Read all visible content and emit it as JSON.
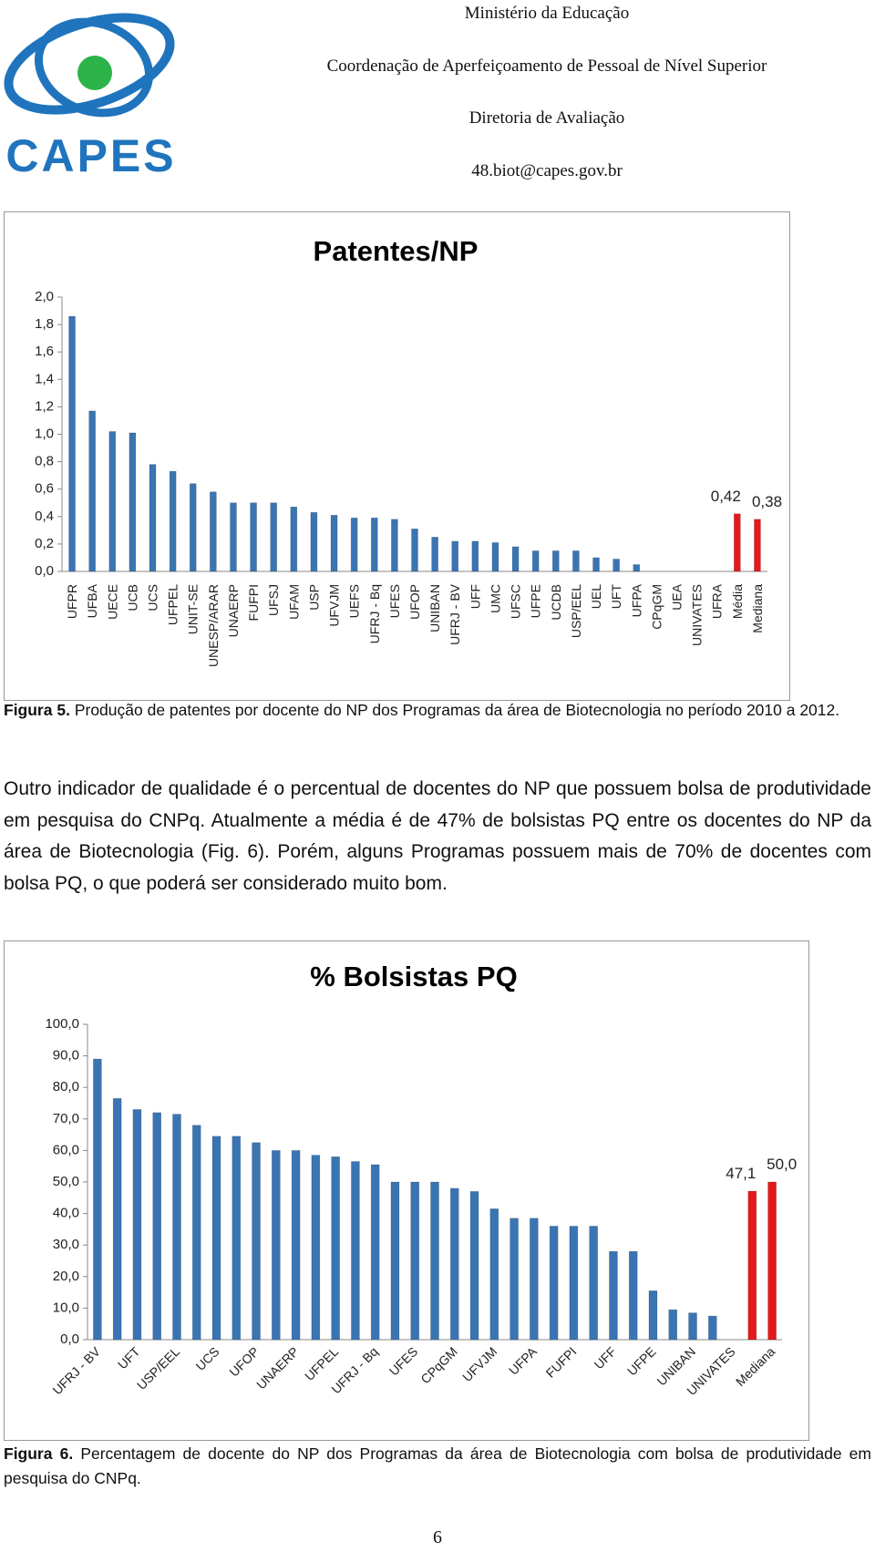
{
  "header": {
    "logo_text": "CAPES",
    "lines": [
      "Ministério da Educação",
      "Coordenação de Aperfeiçoamento de Pessoal de Nível Superior",
      "Diretoria de Avaliação",
      "48.biot@capes.gov.br"
    ]
  },
  "chart_data": [
    {
      "type": "bar",
      "title": "Patentes/NP",
      "categories": [
        "UFPR",
        "UFBA",
        "UECE",
        "UCB",
        "UCS",
        "UFPEL",
        "UNIT-SE",
        "UNESP/ARAR",
        "UNAERP",
        "FUFPI",
        "UFSJ",
        "UFAM",
        "USP",
        "UFVJM",
        "UEFS",
        "UFRJ - Bq",
        "UFES",
        "UFOP",
        "UNIBAN",
        "UFRJ - BV",
        "UFF",
        "UMC",
        "UFSC",
        "UFPE",
        "UCDB",
        "USP/EEL",
        "UEL",
        "UFT",
        "UFPA",
        "CPqGM",
        "UEA",
        "UNIVATES",
        "UFRA",
        "Média",
        "Mediana"
      ],
      "values": [
        1.86,
        1.17,
        1.02,
        1.01,
        0.78,
        0.73,
        0.64,
        0.58,
        0.5,
        0.5,
        0.5,
        0.47,
        0.43,
        0.41,
        0.39,
        0.39,
        0.38,
        0.31,
        0.25,
        0.22,
        0.22,
        0.21,
        0.18,
        0.15,
        0.15,
        0.15,
        0.1,
        0.09,
        0.05,
        0,
        0,
        0,
        0,
        0.42,
        0.38
      ],
      "value_labels": [
        null,
        null,
        null,
        null,
        null,
        null,
        null,
        null,
        null,
        null,
        null,
        null,
        null,
        null,
        null,
        null,
        null,
        null,
        null,
        null,
        null,
        null,
        null,
        null,
        null,
        null,
        null,
        null,
        null,
        null,
        null,
        null,
        null,
        "0,42",
        "0,38"
      ],
      "colors": [
        "#3a75b3",
        "#3a75b3",
        "#3a75b3",
        "#3a75b3",
        "#3a75b3",
        "#3a75b3",
        "#3a75b3",
        "#3a75b3",
        "#3a75b3",
        "#3a75b3",
        "#3a75b3",
        "#3a75b3",
        "#3a75b3",
        "#3a75b3",
        "#3a75b3",
        "#3a75b3",
        "#3a75b3",
        "#3a75b3",
        "#3a75b3",
        "#3a75b3",
        "#3a75b3",
        "#3a75b3",
        "#3a75b3",
        "#3a75b3",
        "#3a75b3",
        "#3a75b3",
        "#3a75b3",
        "#3a75b3",
        "#3a75b3",
        "#3a75b3",
        "#3a75b3",
        "#3a75b3",
        "#3a75b3",
        "#e3191c",
        "#e3191c"
      ],
      "ylim": [
        0,
        2
      ],
      "yticks": [
        {
          "value": 0,
          "label": "0,0"
        },
        {
          "value": 0.2,
          "label": "0,2"
        },
        {
          "value": 0.4,
          "label": "0,4"
        },
        {
          "value": 0.6,
          "label": "0,6"
        },
        {
          "value": 0.8,
          "label": "0,8"
        },
        {
          "value": 1,
          "label": "1,0"
        },
        {
          "value": 1.2,
          "label": "1,2"
        },
        {
          "value": 1.4,
          "label": "1,4"
        },
        {
          "value": 1.6,
          "label": "1,6"
        },
        {
          "value": 1.8,
          "label": "1,8"
        },
        {
          "value": 2,
          "label": "2,0"
        }
      ],
      "grid": false
    },
    {
      "type": "bar",
      "title": "% Bolsistas PQ",
      "categories": [
        "UFRJ - BV",
        null,
        "UFT",
        null,
        "USP/EEL",
        null,
        "UCS",
        null,
        "UFOP",
        null,
        "UNAERP",
        null,
        "UFPEL",
        null,
        "UFRJ - Bq",
        null,
        "UFES",
        null,
        "CPqGM",
        null,
        "UFVJM",
        null,
        "UFPA",
        null,
        "FUFPI",
        null,
        "UFF",
        null,
        "UFPE",
        null,
        "UNIBAN",
        null,
        "UNIVATES",
        null,
        "Mediana"
      ],
      "values": [
        89,
        76.5,
        73,
        72,
        71.5,
        68,
        64.5,
        64.5,
        62.5,
        60,
        60,
        58.5,
        58,
        56.5,
        55.5,
        50,
        50,
        50,
        48,
        47,
        41.5,
        38.5,
        38.5,
        36,
        36,
        36,
        28,
        28,
        15.5,
        9.5,
        8.5,
        7.5,
        0,
        47.1,
        50
      ],
      "value_labels": [
        null,
        null,
        null,
        null,
        null,
        null,
        null,
        null,
        null,
        null,
        null,
        null,
        null,
        null,
        null,
        null,
        null,
        null,
        null,
        null,
        null,
        null,
        null,
        null,
        null,
        null,
        null,
        null,
        null,
        null,
        null,
        null,
        null,
        "47,1",
        "50,0"
      ],
      "colors": [
        "#3a75b3",
        "#3a75b3",
        "#3a75b3",
        "#3a75b3",
        "#3a75b3",
        "#3a75b3",
        "#3a75b3",
        "#3a75b3",
        "#3a75b3",
        "#3a75b3",
        "#3a75b3",
        "#3a75b3",
        "#3a75b3",
        "#3a75b3",
        "#3a75b3",
        "#3a75b3",
        "#3a75b3",
        "#3a75b3",
        "#3a75b3",
        "#3a75b3",
        "#3a75b3",
        "#3a75b3",
        "#3a75b3",
        "#3a75b3",
        "#3a75b3",
        "#3a75b3",
        "#3a75b3",
        "#3a75b3",
        "#3a75b3",
        "#3a75b3",
        "#3a75b3",
        "#3a75b3",
        "#3a75b3",
        "#e3191c",
        "#e3191c"
      ],
      "ylim": [
        0,
        100
      ],
      "yticks": [
        {
          "value": 0,
          "label": "0,0"
        },
        {
          "value": 10,
          "label": "10,0"
        },
        {
          "value": 20,
          "label": "20,0"
        },
        {
          "value": 30,
          "label": "30,0"
        },
        {
          "value": 40,
          "label": "40,0"
        },
        {
          "value": 50,
          "label": "50,0"
        },
        {
          "value": 60,
          "label": "60,0"
        },
        {
          "value": 70,
          "label": "70,0"
        },
        {
          "value": 80,
          "label": "80,0"
        },
        {
          "value": 90,
          "label": "90,0"
        },
        {
          "value": 100,
          "label": "100,0"
        }
      ],
      "grid": false
    }
  ],
  "figure5": {
    "label": "Figura 5.",
    "text": "Produção de patentes por docente do NP dos Programas da área de Biotecnologia no período 2010 a 2012."
  },
  "paragraph": "Outro indicador de qualidade é o percentual de docentes do NP que possuem bolsa de produtividade em pesquisa do CNPq. Atualmente a média é de 47% de bolsistas PQ entre os docentes do NP da área de Biotecnologia (Fig. 6). Porém, alguns Programas possuem mais de 70% de docentes com bolsa PQ, o que poderá ser considerado muito bom.",
  "figure6": {
    "label": "Figura 6.",
    "text": "Percentagem de docente do NP dos Programas da área de Biotecnologia com bolsa de produtividade em pesquisa do CNPq."
  },
  "page_number": "6"
}
